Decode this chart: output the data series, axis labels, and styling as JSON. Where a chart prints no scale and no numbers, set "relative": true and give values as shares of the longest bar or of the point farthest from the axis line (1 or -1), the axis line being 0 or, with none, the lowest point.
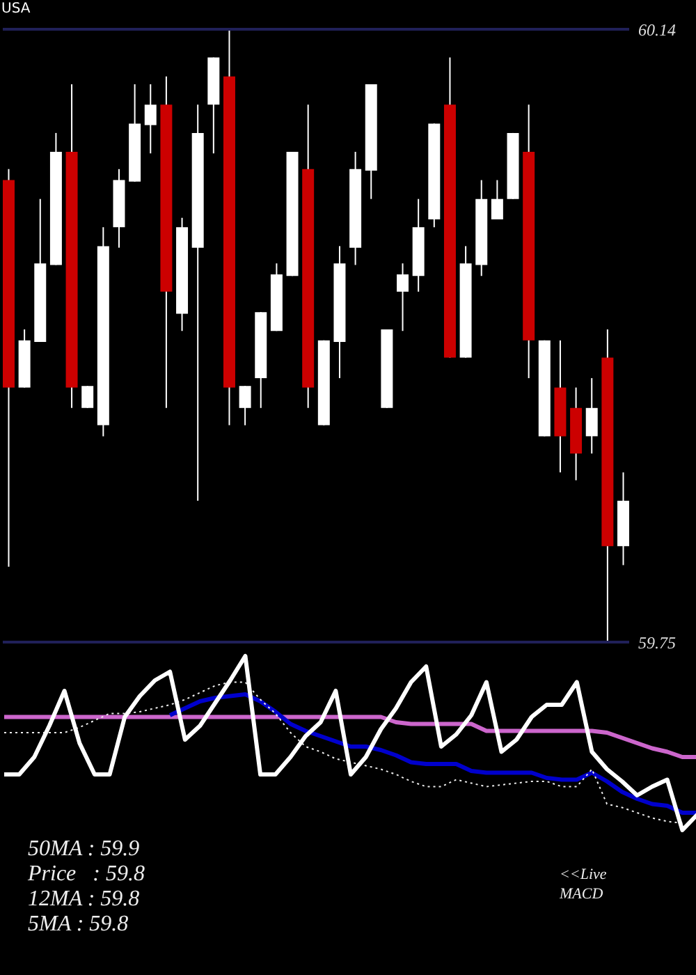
{
  "chart_data": [
    {
      "type": "candlestick",
      "title": "USA",
      "categories": [
        null,
        null,
        null,
        null,
        null,
        null,
        null,
        null,
        null,
        null,
        null,
        null,
        null,
        null,
        null,
        null,
        null,
        null,
        null,
        null,
        null,
        null,
        null,
        null,
        null,
        null,
        null,
        null,
        null,
        null,
        null,
        null,
        null,
        null,
        null,
        null,
        null,
        null,
        null,
        null
      ],
      "ohlc": [
        [
          60.044,
          60.051,
          59.798,
          59.912
        ],
        [
          59.912,
          59.949,
          59.912,
          59.942
        ],
        [
          59.941,
          60.032,
          59.941,
          59.991
        ],
        [
          59.99,
          60.074,
          59.99,
          60.062
        ],
        [
          60.062,
          60.105,
          59.899,
          59.912
        ],
        [
          59.899,
          59.913,
          59.899,
          59.913
        ],
        [
          59.888,
          60.014,
          59.881,
          60.002
        ],
        [
          60.014,
          60.051,
          60.001,
          60.044
        ],
        [
          60.043,
          60.105,
          60.043,
          60.08
        ],
        [
          60.079,
          60.105,
          60.061,
          60.092
        ],
        [
          60.092,
          60.11,
          59.899,
          59.973
        ],
        [
          59.959,
          60.02,
          59.948,
          60.014
        ],
        [
          60.001,
          60.092,
          59.84,
          60.074
        ],
        [
          60.092,
          60.122,
          60.061,
          60.122
        ],
        [
          60.11,
          60.14,
          59.888,
          59.912
        ],
        [
          59.899,
          59.913,
          59.888,
          59.913
        ],
        [
          59.918,
          59.96,
          59.899,
          59.96
        ],
        [
          59.948,
          59.991,
          59.948,
          59.984
        ],
        [
          59.983,
          60.062,
          59.983,
          60.062
        ],
        [
          60.051,
          60.092,
          59.899,
          59.912
        ],
        [
          59.888,
          59.942,
          59.888,
          59.942
        ],
        [
          59.941,
          60.002,
          59.918,
          59.991
        ],
        [
          60.001,
          60.062,
          59.99,
          60.051
        ],
        [
          60.05,
          60.105,
          60.032,
          60.105
        ],
        [
          59.899,
          59.949,
          59.899,
          59.949
        ],
        [
          59.973,
          59.991,
          59.948,
          59.984
        ],
        [
          59.983,
          60.032,
          59.973,
          60.014
        ],
        [
          60.019,
          60.08,
          60.014,
          60.08
        ],
        [
          60.092,
          60.122,
          59.931,
          59.931
        ],
        [
          59.931,
          60.002,
          59.931,
          59.991
        ],
        [
          59.99,
          60.044,
          59.983,
          60.032
        ],
        [
          60.019,
          60.044,
          60.019,
          60.032
        ],
        [
          60.032,
          60.074,
          60.032,
          60.074
        ],
        [
          60.062,
          60.092,
          59.918,
          59.942
        ],
        [
          59.881,
          59.942,
          59.881,
          59.942
        ],
        [
          59.912,
          59.942,
          59.858,
          59.881
        ],
        [
          59.899,
          59.912,
          59.853,
          59.87
        ],
        [
          59.881,
          59.918,
          59.87,
          59.899
        ],
        [
          59.931,
          59.949,
          59.75,
          59.811
        ],
        [
          59.811,
          59.858,
          59.799,
          59.84
        ]
      ],
      "colors": [
        "#cc0000",
        "#ffffff",
        "#ffffff",
        "#ffffff",
        "#cc0000",
        "#ffffff",
        "#ffffff",
        "#ffffff",
        "#ffffff",
        "#ffffff",
        "#cc0000",
        "#ffffff",
        "#ffffff",
        "#ffffff",
        "#cc0000",
        "#ffffff",
        "#ffffff",
        "#ffffff",
        "#ffffff",
        "#cc0000",
        "#ffffff",
        "#ffffff",
        "#ffffff",
        "#ffffff",
        "#ffffff",
        "#ffffff",
        "#ffffff",
        "#ffffff",
        "#cc0000",
        "#ffffff",
        "#ffffff",
        "#ffffff",
        "#ffffff",
        "#cc0000",
        "#ffffff",
        "#cc0000",
        "#cc0000",
        "#ffffff",
        "#cc0000",
        "#ffffff"
      ],
      "tick_labels": "y",
      "ylim": [
        59.75,
        60.14
      ],
      "yticks": [
        59.75,
        60.14
      ],
      "ref_lines": [
        {
          "axis": "y",
          "value": 60.14,
          "color": "#202058"
        },
        {
          "axis": "y",
          "value": 59.75,
          "color": "#202058"
        }
      ]
    },
    {
      "type": "line",
      "relative": true,
      "tick_labels": false,
      "categories": [
        null,
        null,
        null,
        null,
        null,
        null,
        null,
        null,
        null,
        null,
        null,
        null,
        null,
        null,
        null,
        null,
        null,
        null,
        null,
        null,
        null,
        null,
        null,
        null,
        null,
        null,
        null,
        null,
        null,
        null,
        null,
        null,
        null,
        null,
        null,
        null,
        null,
        null,
        null,
        null,
        null,
        null,
        null,
        null,
        null,
        null,
        null
      ],
      "series": [
        {
          "color": "#cc66cc",
          "values": [
            0.65,
            0.65,
            0.65,
            0.65,
            0.65,
            0.65,
            0.65,
            0.65,
            0.65,
            0.65,
            0.65,
            0.65,
            0.65,
            0.65,
            0.65,
            0.65,
            0.65,
            0.65,
            0.65,
            0.65,
            0.65,
            0.65,
            0.65,
            0.65,
            0.65,
            0.65,
            0.62,
            0.61,
            0.61,
            0.61,
            0.61,
            0.61,
            0.57,
            0.57,
            0.57,
            0.57,
            0.57,
            0.57,
            0.57,
            0.57,
            0.56,
            0.53,
            0.5,
            0.47,
            0.45,
            0.42,
            0.42
          ]
        },
        {
          "color": "#0000cc",
          "values": [
            null,
            null,
            null,
            null,
            null,
            null,
            null,
            null,
            null,
            null,
            null,
            0.66,
            0.7,
            0.74,
            0.76,
            0.77,
            0.78,
            0.74,
            0.68,
            0.61,
            0.57,
            0.54,
            0.51,
            0.48,
            0.48,
            0.46,
            0.43,
            0.39,
            0.38,
            0.38,
            0.38,
            0.34,
            0.33,
            0.33,
            0.33,
            0.33,
            0.3,
            0.29,
            0.29,
            0.33,
            0.28,
            0.22,
            0.18,
            0.15,
            0.14,
            0.1,
            0.1
          ]
        },
        {
          "color": "#eeeeee",
          "line_style": "dotted",
          "values": [
            0.56,
            0.56,
            0.56,
            0.56,
            0.56,
            0.59,
            0.63,
            0.67,
            0.67,
            0.68,
            0.7,
            0.72,
            0.75,
            0.79,
            0.83,
            0.85,
            0.85,
            0.75,
            0.67,
            0.56,
            0.48,
            0.45,
            0.41,
            0.39,
            0.37,
            0.35,
            0.32,
            0.28,
            0.25,
            0.25,
            0.29,
            0.27,
            0.25,
            0.26,
            0.27,
            0.28,
            0.28,
            0.25,
            0.25,
            0.35,
            0.15,
            0.13,
            0.1,
            0.07,
            0.05,
            0.04,
            null
          ]
        },
        {
          "color": "#ffffff",
          "values": [
            0.32,
            0.32,
            0.42,
            0.6,
            0.8,
            0.5,
            0.32,
            0.32,
            0.65,
            0.77,
            0.86,
            0.91,
            0.52,
            0.6,
            0.73,
            0.86,
            1,
            0.32,
            0.32,
            0.42,
            0.54,
            0.62,
            0.8,
            0.32,
            0.42,
            0.58,
            0.7,
            0.85,
            0.94,
            0.48,
            0.55,
            0.66,
            0.85,
            0.45,
            0.52,
            0.65,
            0.72,
            0.72,
            0.85,
            0.45,
            0.35,
            0.28,
            0.2,
            0.25,
            0.29,
            0,
            0.09
          ]
        }
      ],
      "annotations": [
        "50MA : 59.9",
        "Price   : 59.8",
        "12MA : 59.8",
        "5MA : 59.8",
        "<<Live MACD"
      ]
    }
  ]
}
